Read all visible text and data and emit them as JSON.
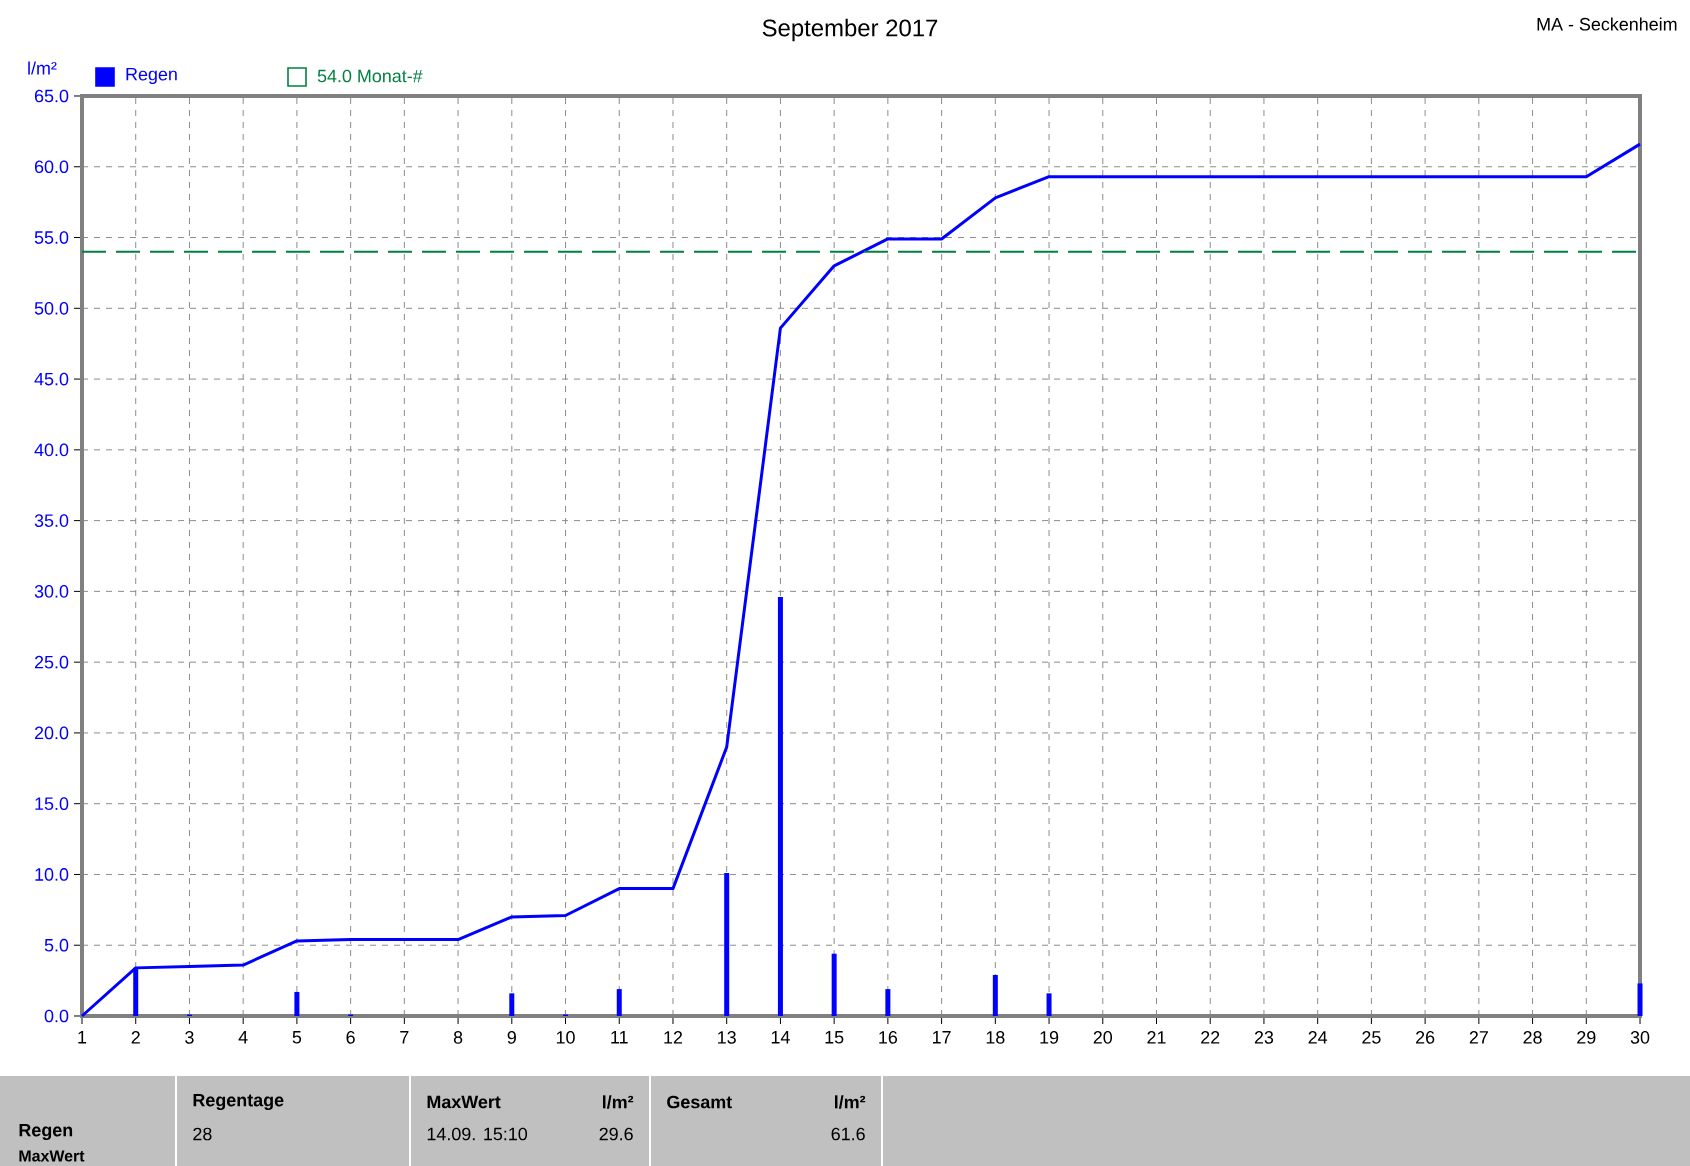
{
  "chart_data": {
    "type": "line",
    "title": "September 2017",
    "ylabel": "l/m²",
    "annotations": [
      "MA - Seckenheim",
      "Regen",
      "MaxWert",
      "Regentage",
      "28",
      "MaxWert",
      "l/m²",
      "14.09.  15:10",
      "29.6",
      "Gesamt",
      "l/m²",
      "61.6"
    ],
    "series": [
      {
        "name": "Regen",
        "type": "bar",
        "color": "#0000ff",
        "x": [
          2,
          3,
          5,
          6,
          9,
          10,
          11,
          13,
          14,
          15,
          16,
          18,
          19,
          30
        ],
        "values": [
          3.4,
          0.1,
          1.7,
          0.1,
          1.6,
          0.1,
          1.9,
          10.1,
          29.6,
          4.4,
          1.9,
          2.9,
          1.6,
          2.3
        ]
      },
      {
        "color": "#0000ff",
        "x": [
          1,
          2,
          3,
          4,
          5,
          6,
          7,
          8,
          9,
          10,
          11,
          12,
          13,
          14,
          15,
          16,
          17,
          18,
          19,
          20,
          21,
          22,
          23,
          24,
          25,
          26,
          27,
          28,
          29,
          30
        ],
        "values": [
          0,
          3.4,
          3.5,
          3.6,
          5.3,
          5.4,
          5.4,
          5.4,
          7.0,
          7.1,
          9.0,
          9.0,
          19.0,
          48.6,
          53.0,
          54.9,
          54.9,
          57.8,
          59.3,
          59.3,
          59.3,
          59.3,
          59.3,
          59.3,
          59.3,
          59.3,
          59.3,
          59.3,
          59.3,
          61.6
        ]
      }
    ],
    "xlim": [
      1,
      30
    ],
    "xticks": [
      1,
      2,
      3,
      4,
      5,
      6,
      7,
      8,
      9,
      10,
      11,
      12,
      13,
      14,
      15,
      16,
      17,
      18,
      19,
      20,
      21,
      22,
      23,
      24,
      25,
      26,
      27,
      28,
      29,
      30
    ],
    "ylim": [
      0,
      65
    ],
    "yticks": [
      {
        "value": 0,
        "label": "0.0"
      },
      {
        "value": 5,
        "label": "5.0"
      },
      {
        "value": 10,
        "label": "10.0"
      },
      {
        "value": 15,
        "label": "15.0"
      },
      {
        "value": 20,
        "label": "20.0"
      },
      {
        "value": 25,
        "label": "25.0"
      },
      {
        "value": 30,
        "label": "30.0"
      },
      {
        "value": 35,
        "label": "35.0"
      },
      {
        "value": 40,
        "label": "40.0"
      },
      {
        "value": 45,
        "label": "45.0"
      },
      {
        "value": 50,
        "label": "50.0"
      },
      {
        "value": 55,
        "label": "55.0"
      },
      {
        "value": 60,
        "label": "60.0"
      },
      {
        "value": 65,
        "label": "65.0"
      }
    ],
    "ref_lines": [
      {
        "axis": "y",
        "value": 54.0,
        "label": "54.0 Monat-#",
        "color": "#008040",
        "line_style": "dashed"
      }
    ],
    "grid": true,
    "legend": "top left",
    "marker": "none",
    "line_style": "solid"
  }
}
